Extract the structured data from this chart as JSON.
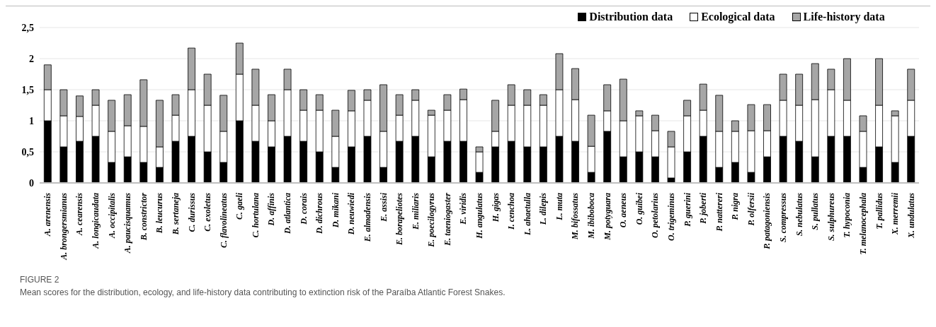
{
  "chart_data": {
    "type": "bar",
    "stacked": true,
    "categories": [
      "A. arenensis",
      "A. brongersmianus",
      "A. cearensis",
      "A. longicaudata",
      "A. occipitalis",
      "A. paucisquamus",
      "B. constrictor",
      "B. leucurus",
      "B. sertaneja",
      "C. durissus",
      "C. exoletus",
      "C. flavolineatus",
      "C. gaeli",
      "C. hortulana",
      "D. affinis",
      "D. atlantica",
      "D. corais",
      "D. dichrous",
      "D. mikani",
      "D. neuwiedi",
      "E. almadensis",
      "E. assisi",
      "E. borapeliotes",
      "E. miliaris",
      "E. poecilogyrus",
      "E. taeniogaster",
      "E. viridis",
      "H. angulatus",
      "H. gigas",
      "I. cenchoa",
      "L. ahaetulla",
      "L. dilepis",
      "L. muta",
      "M. bifossatus",
      "M. ibiboboca",
      "M. potyguara",
      "O. aeneus",
      "O. guibei",
      "O. petolarius",
      "O. trigeminus",
      "P. guerini",
      "P. joberti",
      "P. nattereri",
      "P. nigra",
      "P. olfersii",
      "P. patagoniensis",
      "S. compressus",
      "S. nebulatus",
      "S. pullatus",
      "S. sulphureus",
      "T. hypoconia",
      "T. melanocephala",
      "T. pallidus",
      "X. merremii",
      "X. undulatus"
    ],
    "series": [
      {
        "name": "Distribution data",
        "color": "#000000",
        "values": [
          1,
          0.58,
          0.67,
          0.75,
          0.33,
          0.42,
          0.33,
          0.25,
          0.67,
          0.75,
          0.5,
          0.33,
          1,
          0.67,
          0.58,
          0.75,
          0.67,
          0.5,
          0.25,
          0.58,
          0.75,
          0.25,
          0.67,
          0.75,
          0.42,
          0.67,
          0.67,
          0.17,
          0.58,
          0.67,
          0.58,
          0.58,
          0.75,
          0.67,
          0.17,
          0.83,
          0.42,
          0.5,
          0.42,
          0.08,
          0.5,
          0.75,
          0.25,
          0.33,
          0.17,
          0.42,
          0.75,
          0.67,
          0.42,
          0.75,
          0.75,
          0.25,
          0.58,
          0.33,
          0.75
        ]
      },
      {
        "name": "Ecological data",
        "color": "#ffffff",
        "values": [
          0.5,
          0.5,
          0.4,
          0.5,
          0.5,
          0.5,
          0.58,
          0.33,
          0.42,
          0.75,
          0.75,
          0.5,
          0.75,
          0.58,
          0.42,
          0.75,
          0.5,
          0.67,
          0.5,
          0.58,
          0.58,
          0.58,
          0.42,
          0.58,
          0.67,
          0.5,
          0.67,
          0.33,
          0.25,
          0.58,
          0.67,
          0.67,
          0.75,
          0.67,
          0.42,
          0.33,
          0.58,
          0.58,
          0.42,
          0.5,
          0.58,
          0.42,
          0.58,
          0.5,
          0.67,
          0.42,
          0.58,
          0.58,
          0.92,
          0.75,
          0.58,
          0.58,
          0.67,
          0.75,
          0.58
        ]
      },
      {
        "name": "Life-history data",
        "color": "#a6a6a6",
        "values": [
          0.4,
          0.42,
          0.33,
          0.25,
          0.5,
          0.5,
          0.75,
          0.75,
          0.33,
          0.67,
          0.5,
          0.58,
          0.5,
          0.58,
          0.42,
          0.33,
          0.33,
          0.25,
          0.42,
          0.33,
          0.17,
          0.75,
          0.33,
          0.17,
          0.08,
          0.25,
          0.17,
          0.08,
          0.5,
          0.33,
          0.25,
          0.17,
          0.58,
          0.5,
          0.5,
          0.42,
          0.67,
          0.08,
          0.25,
          0.25,
          0.25,
          0.42,
          0.58,
          0.17,
          0.42,
          0.42,
          0.42,
          0.5,
          0.58,
          0.33,
          0.67,
          0.25,
          0.75,
          0.08,
          0.5
        ]
      }
    ],
    "ylim": [
      0,
      2.5
    ],
    "yticks": [
      0,
      {
        "value": 0.5,
        "label": "0,5"
      },
      1,
      {
        "value": 1.5,
        "label": "1,5"
      },
      2,
      {
        "value": 2.5,
        "label": "2,5"
      }
    ],
    "grid": "y",
    "legend": "top",
    "annotations": [
      "FIGURE 2",
      "Mean scores for the distribution, ecology, and life-history data contributing to extinction risk of the Paraíba Atlantic Forest Snakes."
    ]
  }
}
